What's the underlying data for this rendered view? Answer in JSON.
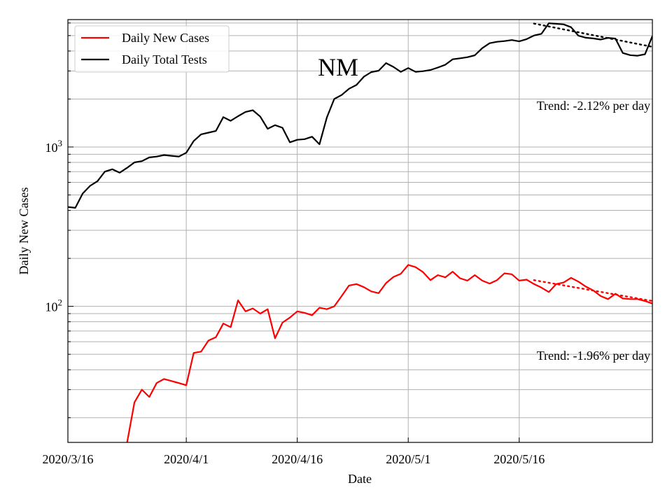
{
  "chart_data": {
    "type": "line",
    "title": "NM",
    "xlabel": "Date",
    "ylabel": "Daily New Cases",
    "y_scale": "log",
    "ylim": [
      14,
      6300
    ],
    "x_start": "2020/3/16",
    "x_end": "2020/6/3",
    "grid": true,
    "legend_position": "top-left",
    "x_tick_labels": [
      "2020/3/16",
      "2020/4/1",
      "2020/4/16",
      "2020/5/1",
      "2020/5/16"
    ],
    "y_tick_labels": [
      {
        "base": "10",
        "exp": "2",
        "value": 100
      },
      {
        "base": "10",
        "exp": "3",
        "value": 1000
      }
    ],
    "series": [
      {
        "name": "Daily Total Tests",
        "color": "#000000",
        "values": [
          [
            "2020/3/16",
            420
          ],
          [
            "2020/3/17",
            415
          ],
          [
            "2020/3/18",
            510
          ],
          [
            "2020/3/19",
            570
          ],
          [
            "2020/3/20",
            610
          ],
          [
            "2020/3/21",
            700
          ],
          [
            "2020/3/22",
            725
          ],
          [
            "2020/3/23",
            690
          ],
          [
            "2020/3/24",
            740
          ],
          [
            "2020/3/25",
            800
          ],
          [
            "2020/3/26",
            815
          ],
          [
            "2020/3/27",
            860
          ],
          [
            "2020/3/28",
            870
          ],
          [
            "2020/3/29",
            890
          ],
          [
            "2020/3/30",
            880
          ],
          [
            "2020/3/31",
            870
          ],
          [
            "2020/4/1",
            920
          ],
          [
            "2020/4/2",
            1090
          ],
          [
            "2020/4/3",
            1200
          ],
          [
            "2020/4/4",
            1230
          ],
          [
            "2020/4/5",
            1260
          ],
          [
            "2020/4/6",
            1540
          ],
          [
            "2020/4/7",
            1460
          ],
          [
            "2020/4/8",
            1560
          ],
          [
            "2020/4/9",
            1660
          ],
          [
            "2020/4/10",
            1700
          ],
          [
            "2020/4/11",
            1550
          ],
          [
            "2020/4/12",
            1300
          ],
          [
            "2020/4/13",
            1370
          ],
          [
            "2020/4/14",
            1320
          ],
          [
            "2020/4/15",
            1070
          ],
          [
            "2020/4/16",
            1110
          ],
          [
            "2020/4/17",
            1120
          ],
          [
            "2020/4/18",
            1160
          ],
          [
            "2020/4/19",
            1040
          ],
          [
            "2020/4/20",
            1530
          ],
          [
            "2020/4/21",
            2000
          ],
          [
            "2020/4/22",
            2120
          ],
          [
            "2020/4/23",
            2320
          ],
          [
            "2020/4/24",
            2450
          ],
          [
            "2020/4/25",
            2760
          ],
          [
            "2020/4/26",
            2950
          ],
          [
            "2020/4/27",
            3010
          ],
          [
            "2020/4/28",
            3360
          ],
          [
            "2020/4/29",
            3180
          ],
          [
            "2020/4/30",
            2960
          ],
          [
            "2020/5/1",
            3130
          ],
          [
            "2020/5/2",
            2960
          ],
          [
            "2020/5/3",
            2990
          ],
          [
            "2020/5/4",
            3040
          ],
          [
            "2020/5/5",
            3150
          ],
          [
            "2020/5/6",
            3280
          ],
          [
            "2020/5/7",
            3550
          ],
          [
            "2020/5/8",
            3600
          ],
          [
            "2020/5/9",
            3660
          ],
          [
            "2020/5/10",
            3760
          ],
          [
            "2020/5/11",
            4170
          ],
          [
            "2020/5/12",
            4480
          ],
          [
            "2020/5/13",
            4570
          ],
          [
            "2020/5/14",
            4620
          ],
          [
            "2020/5/15",
            4690
          ],
          [
            "2020/5/16",
            4600
          ],
          [
            "2020/5/17",
            4750
          ],
          [
            "2020/5/18",
            5010
          ],
          [
            "2020/5/19",
            5130
          ],
          [
            "2020/5/20",
            5980
          ],
          [
            "2020/5/21",
            5930
          ],
          [
            "2020/5/22",
            5880
          ],
          [
            "2020/5/23",
            5650
          ],
          [
            "2020/5/24",
            4990
          ],
          [
            "2020/5/25",
            4850
          ],
          [
            "2020/5/26",
            4800
          ],
          [
            "2020/5/27",
            4720
          ],
          [
            "2020/5/28",
            4840
          ],
          [
            "2020/5/29",
            4790
          ],
          [
            "2020/5/30",
            3890
          ],
          [
            "2020/5/31",
            3770
          ],
          [
            "2020/6/1",
            3740
          ],
          [
            "2020/6/2",
            3820
          ],
          [
            "2020/6/3",
            4960
          ]
        ]
      },
      {
        "name": "Daily New Cases",
        "color": "#ff0000",
        "values": [
          [
            "2020/3/23",
            12
          ],
          [
            "2020/3/24",
            14
          ],
          [
            "2020/3/25",
            25
          ],
          [
            "2020/3/26",
            30
          ],
          [
            "2020/3/27",
            27
          ],
          [
            "2020/3/28",
            33
          ],
          [
            "2020/3/29",
            35
          ],
          [
            "2020/3/30",
            34
          ],
          [
            "2020/3/31",
            33
          ],
          [
            "2020/4/1",
            32
          ],
          [
            "2020/4/2",
            51
          ],
          [
            "2020/4/3",
            52
          ],
          [
            "2020/4/4",
            61
          ],
          [
            "2020/4/5",
            64
          ],
          [
            "2020/4/6",
            78
          ],
          [
            "2020/4/7",
            74
          ],
          [
            "2020/4/8",
            109
          ],
          [
            "2020/4/9",
            93
          ],
          [
            "2020/4/10",
            97
          ],
          [
            "2020/4/11",
            90
          ],
          [
            "2020/4/12",
            96
          ],
          [
            "2020/4/13",
            63
          ],
          [
            "2020/4/14",
            79
          ],
          [
            "2020/4/15",
            85
          ],
          [
            "2020/4/16",
            93
          ],
          [
            "2020/4/17",
            91
          ],
          [
            "2020/4/18",
            88
          ],
          [
            "2020/4/19",
            98
          ],
          [
            "2020/4/20",
            96
          ],
          [
            "2020/4/21",
            100
          ],
          [
            "2020/4/22",
            116
          ],
          [
            "2020/4/23",
            135
          ],
          [
            "2020/4/24",
            138
          ],
          [
            "2020/4/25",
            132
          ],
          [
            "2020/4/26",
            124
          ],
          [
            "2020/4/27",
            121
          ],
          [
            "2020/4/28",
            140
          ],
          [
            "2020/4/29",
            153
          ],
          [
            "2020/4/30",
            160
          ],
          [
            "2020/5/1",
            182
          ],
          [
            "2020/5/2",
            176
          ],
          [
            "2020/5/3",
            164
          ],
          [
            "2020/5/4",
            146
          ],
          [
            "2020/5/5",
            157
          ],
          [
            "2020/5/6",
            152
          ],
          [
            "2020/5/7",
            165
          ],
          [
            "2020/5/8",
            150
          ],
          [
            "2020/5/9",
            145
          ],
          [
            "2020/5/10",
            157
          ],
          [
            "2020/5/11",
            145
          ],
          [
            "2020/5/12",
            139
          ],
          [
            "2020/5/13",
            146
          ],
          [
            "2020/5/14",
            161
          ],
          [
            "2020/5/15",
            159
          ],
          [
            "2020/5/16",
            145
          ],
          [
            "2020/5/17",
            147
          ],
          [
            "2020/5/18",
            138
          ],
          [
            "2020/5/19",
            131
          ],
          [
            "2020/5/20",
            123
          ],
          [
            "2020/5/21",
            138
          ],
          [
            "2020/5/22",
            141
          ],
          [
            "2020/5/23",
            151
          ],
          [
            "2020/5/24",
            143
          ],
          [
            "2020/5/25",
            133
          ],
          [
            "2020/5/26",
            126
          ],
          [
            "2020/5/27",
            116
          ],
          [
            "2020/5/28",
            111
          ],
          [
            "2020/5/29",
            120
          ],
          [
            "2020/5/30",
            112
          ],
          [
            "2020/5/31",
            111
          ],
          [
            "2020/6/1",
            111
          ],
          [
            "2020/6/2",
            108
          ],
          [
            "2020/6/3",
            104
          ]
        ]
      }
    ],
    "trend_lines": [
      {
        "series": "Daily Total Tests",
        "color": "#000000",
        "start": [
          "2020/5/18",
          5950
        ],
        "end": [
          "2020/6/3",
          4250
        ]
      },
      {
        "series": "Daily New Cases",
        "color": "#ff0000",
        "start": [
          "2020/5/18",
          146
        ],
        "end": [
          "2020/6/3",
          108
        ]
      }
    ],
    "annotations": [
      {
        "name": "trend-tests",
        "text": "Trend: -2.12% per day"
      },
      {
        "name": "trend-cases",
        "text": "Trend: -1.96% per day"
      }
    ]
  }
}
